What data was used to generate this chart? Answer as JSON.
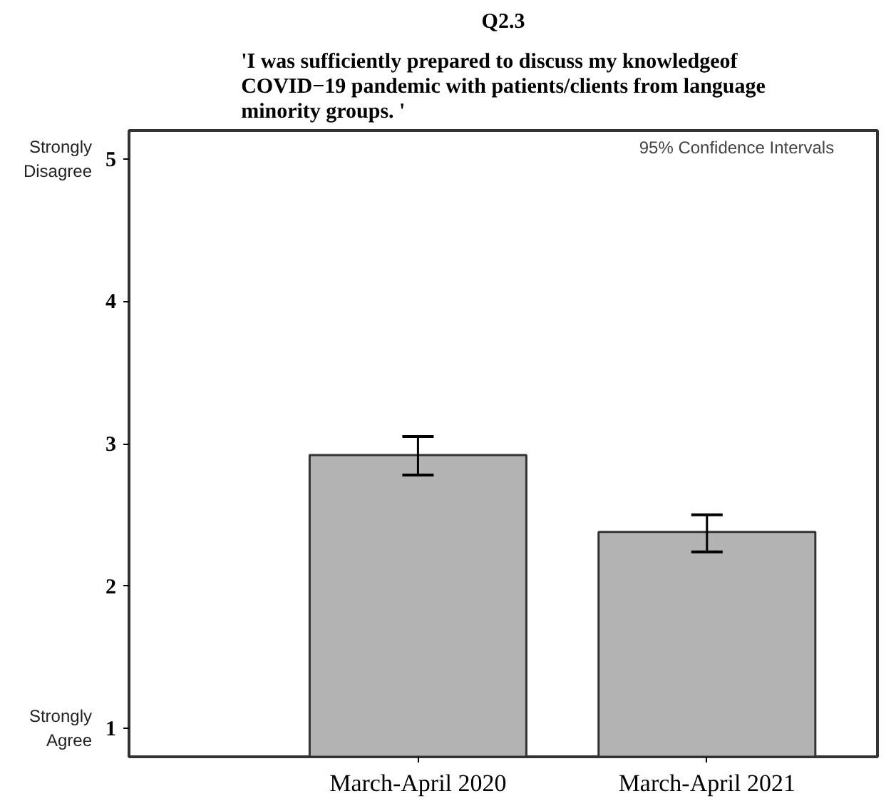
{
  "chart_data": {
    "type": "bar",
    "title": "Q2.3",
    "subtitle": "'I was sufficiently prepared to discuss my knowledgeof COVID−19 pandemic with patients/clients from language minority groups. '",
    "categories": [
      "March-April 2020",
      "March-April 2021"
    ],
    "values": [
      2.92,
      2.38
    ],
    "errors": [
      [
        2.78,
        3.05
      ],
      [
        2.24,
        2.5
      ]
    ],
    "color": "#b3b3b3",
    "ylim": [
      0.8,
      5.2
    ],
    "yticks": [
      1,
      2,
      3,
      4,
      5
    ],
    "grid": false,
    "annotations": [
      "95% Confidence Intervals",
      "Strongly Disagree",
      "Strongly Agree"
    ]
  }
}
